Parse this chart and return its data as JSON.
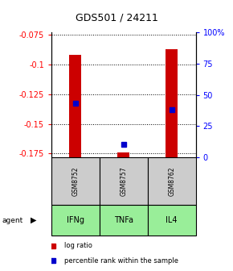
{
  "title": "GDS501 / 24211",
  "samples": [
    "GSM8752",
    "GSM8757",
    "GSM8762"
  ],
  "agents": [
    "IFNg",
    "TNFa",
    "IL4"
  ],
  "log_ratios": [
    -0.092,
    -0.174,
    -0.087
  ],
  "percentile_ranks": [
    43,
    10,
    38
  ],
  "ylim_left": [
    -0.178,
    -0.073
  ],
  "yticks_left": [
    -0.175,
    -0.15,
    -0.125,
    -0.1,
    -0.075
  ],
  "yticks_right": [
    0,
    25,
    50,
    75,
    100
  ],
  "bar_color": "#cc0000",
  "dot_color": "#0000cc",
  "agent_color": "#99ee99",
  "sample_color": "#cccccc",
  "bar_width": 0.25
}
